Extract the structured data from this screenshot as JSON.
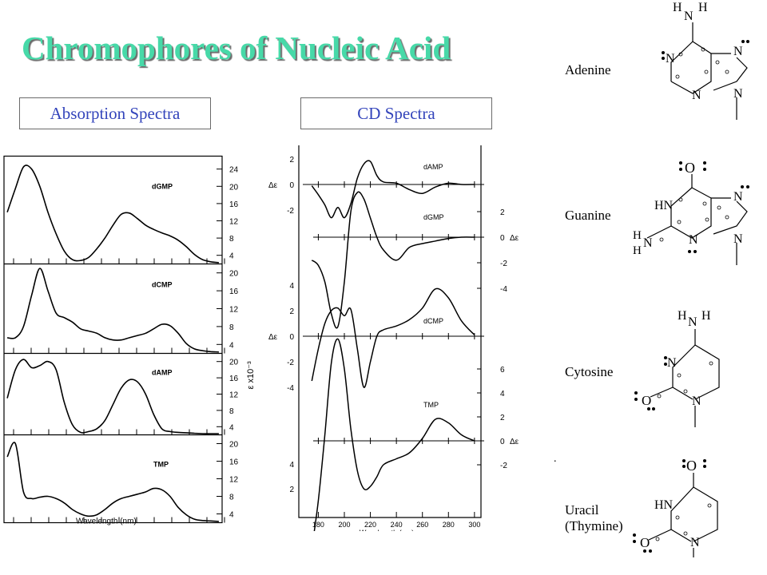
{
  "title": "Chromophores of Nucleic Acid",
  "tabs": {
    "absorption": "Absorption Spectra",
    "cd": "CD Spectra"
  },
  "colors": {
    "title": "#47d9a8",
    "tab_text": "#3344bb",
    "curve": "#000000"
  },
  "molecules": {
    "adenine": "Adenine",
    "guanine": "Guanine",
    "cytosine": "Cytosine",
    "uracil": "Uracil",
    "thymine": "(Thymine)",
    "atoms": {
      "N": "N",
      "H": "H",
      "O": "O",
      "HN": "HN"
    }
  },
  "chart_data": [
    {
      "type": "line",
      "title": "Absorption Spectra",
      "xlabel": "Wavelength (nm)",
      "ylabel": "ε x10⁻³",
      "panels": [
        {
          "name": "dGMP",
          "yticks": [
            4,
            8,
            12,
            16,
            20,
            24
          ],
          "ylim": [
            2,
            27
          ],
          "x": [
            180,
            185,
            190,
            195,
            200,
            205,
            210,
            215,
            220,
            225,
            230,
            235,
            240,
            245,
            250,
            255,
            260,
            265,
            270,
            275,
            280,
            285,
            290,
            295,
            300,
            305,
            310
          ],
          "values": [
            14,
            19.5,
            24.5,
            24,
            20,
            14,
            9,
            5,
            3,
            2.8,
            3.5,
            5.5,
            8,
            11,
            13.5,
            13.8,
            12.5,
            11,
            10,
            9.2,
            8.5,
            7.5,
            6,
            4.2,
            3,
            2.5,
            2.3
          ]
        },
        {
          "name": "dCMP",
          "yticks": [
            4,
            8,
            12,
            16,
            20
          ],
          "ylim": [
            2,
            22
          ],
          "x": [
            180,
            185,
            190,
            195,
            200,
            205,
            210,
            215,
            220,
            225,
            230,
            235,
            240,
            245,
            250,
            255,
            260,
            265,
            270,
            275,
            280,
            285,
            290,
            295,
            300,
            305,
            310
          ],
          "values": [
            5.5,
            5.5,
            8,
            15,
            21,
            16,
            11,
            10,
            9,
            7.5,
            7,
            6.5,
            5.5,
            5,
            5,
            5.5,
            6,
            6.5,
            7.5,
            8.5,
            8.2,
            6.5,
            4.2,
            3,
            2.6,
            2.4,
            2.3
          ]
        },
        {
          "name": "dAMP",
          "yticks": [
            4,
            8,
            12,
            16,
            20
          ],
          "ylim": [
            2,
            22
          ],
          "x": [
            180,
            185,
            190,
            195,
            200,
            205,
            210,
            215,
            220,
            225,
            230,
            235,
            240,
            245,
            250,
            255,
            260,
            265,
            270,
            275,
            280,
            285,
            290,
            295,
            300,
            305,
            310
          ],
          "values": [
            11,
            18,
            20.5,
            18.5,
            19,
            20,
            18,
            10,
            4.5,
            2.6,
            2.8,
            3.5,
            5.5,
            9.5,
            13.5,
            15.5,
            15,
            12,
            7,
            3.5,
            2.8,
            2.6,
            2.5,
            2.4,
            2.3,
            2.3,
            2.3
          ]
        },
        {
          "name": "TMP",
          "yticks": [
            4,
            8,
            12,
            16,
            20
          ],
          "ylim": [
            2,
            22
          ],
          "x": [
            180,
            185,
            190,
            195,
            200,
            205,
            210,
            215,
            220,
            225,
            230,
            235,
            240,
            245,
            250,
            255,
            260,
            265,
            270,
            275,
            280,
            285,
            290,
            295,
            300,
            305,
            310
          ],
          "values": [
            17,
            20,
            9,
            7.5,
            7.8,
            8,
            7.5,
            6.5,
            5,
            4,
            3.5,
            3.8,
            5,
            6.5,
            7.5,
            8,
            8.5,
            9,
            9.8,
            9.5,
            8,
            5.5,
            3.8,
            2.8,
            2.5,
            2.4,
            2.3
          ]
        }
      ]
    },
    {
      "type": "line",
      "title": "CD Spectra",
      "xlabel": "Wavelength (nm)",
      "ylabel": "Δε",
      "xticks": [
        180,
        200,
        220,
        240,
        260,
        280,
        300
      ],
      "xlim": [
        165,
        305
      ],
      "panels": [
        {
          "name": "dAMP",
          "yaxis_side": "left",
          "ytick_labels": [
            "2",
            "0",
            "-2"
          ],
          "ytick_values": [
            2,
            0,
            -2
          ],
          "zero_label": "Δε",
          "x": [
            175,
            180,
            185,
            190,
            195,
            200,
            205,
            210,
            215,
            220,
            225,
            230,
            240,
            250,
            260,
            270,
            280,
            290,
            300
          ],
          "values": [
            -0.1,
            -0.8,
            -1.6,
            -2.6,
            -1.8,
            -2.6,
            -1.5,
            0.5,
            1.6,
            1.8,
            0.7,
            0.2,
            0.1,
            -0.4,
            -0.7,
            -0.2,
            0.1,
            0.0,
            0.0
          ]
        },
        {
          "name": "dGMP",
          "yaxis_side": "right",
          "ytick_labels": [
            "2",
            "0",
            "-2",
            "-4"
          ],
          "ytick_values": [
            2,
            0,
            -2,
            -4
          ],
          "zero_label": "Δε",
          "x": [
            175,
            180,
            185,
            190,
            195,
            200,
            205,
            210,
            215,
            220,
            225,
            230,
            240,
            250,
            260,
            270,
            280,
            290,
            300
          ],
          "values": [
            -1.8,
            -2.2,
            -3.5,
            -6.0,
            -7.0,
            -3.5,
            2.0,
            3.5,
            3.0,
            1.5,
            0.0,
            -1.0,
            -1.8,
            -0.8,
            -0.5,
            -0.3,
            -0.1,
            0.0,
            0.0
          ]
        },
        {
          "name": "dCMP",
          "yaxis_side": "left",
          "ytick_labels": [
            "4",
            "2",
            "0",
            "-2",
            "-4"
          ],
          "ytick_values": [
            4,
            2,
            0,
            -2,
            -4
          ],
          "zero_label": "Δε",
          "x": [
            175,
            180,
            185,
            190,
            195,
            200,
            205,
            210,
            215,
            220,
            225,
            230,
            240,
            250,
            260,
            270,
            280,
            290,
            300
          ],
          "values": [
            -3.5,
            -1.0,
            1.0,
            2.0,
            2.2,
            1.6,
            2.1,
            -1.0,
            -4.0,
            -2.0,
            0.0,
            0.5,
            0.8,
            1.3,
            2.2,
            3.7,
            3.0,
            1.2,
            0.1
          ]
        },
        {
          "name": "TMP",
          "yaxis_side": "right",
          "ytick_labels": [
            "6",
            "4",
            "2",
            "0",
            "-2"
          ],
          "ytick_values": [
            6,
            4,
            2,
            0,
            -2
          ],
          "zero_label": "Δε",
          "x": [
            175,
            180,
            185,
            190,
            195,
            200,
            205,
            210,
            215,
            220,
            225,
            230,
            240,
            250,
            260,
            270,
            280,
            290,
            300
          ],
          "values": [
            -9.0,
            -5.0,
            0.5,
            6.5,
            8.5,
            6.0,
            1.0,
            -2.5,
            -4.0,
            -3.8,
            -3.0,
            -2.0,
            -1.5,
            -1.0,
            0.2,
            1.8,
            1.5,
            0.5,
            0.0
          ]
        }
      ],
      "extra_left_ticks": [
        "4",
        "2"
      ]
    }
  ]
}
